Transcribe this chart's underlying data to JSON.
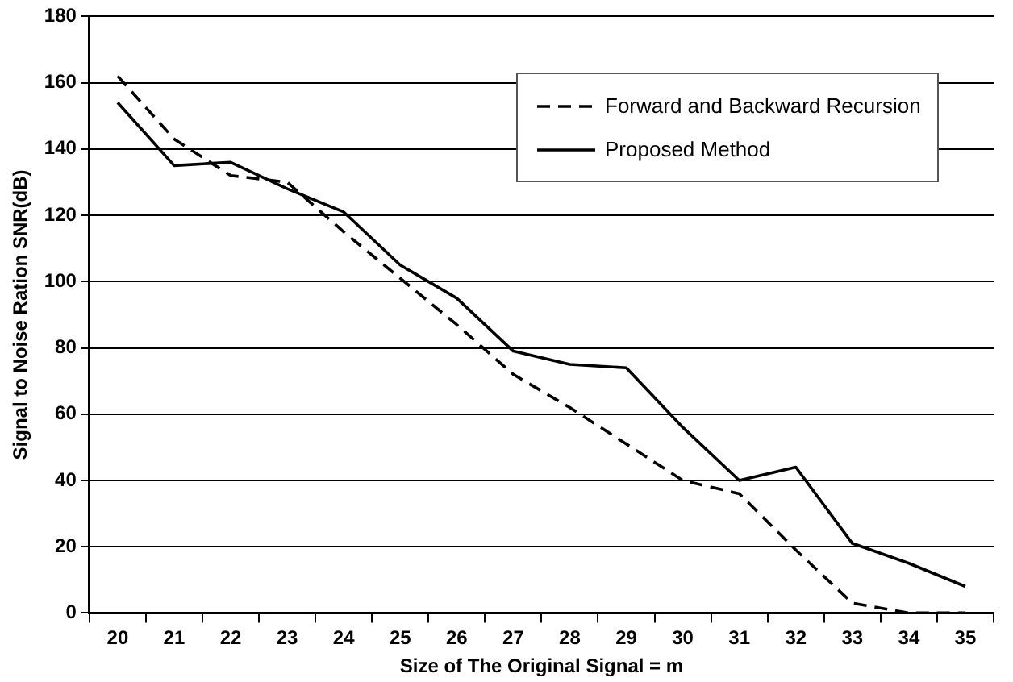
{
  "chart_data": {
    "type": "line",
    "xlabel": "Size of The Original Signal = m",
    "ylabel": "Signal to Noise Ration SNR(dB)",
    "categories": [
      "20",
      "21",
      "22",
      "23",
      "24",
      "25",
      "26",
      "27",
      "28",
      "29",
      "30",
      "31",
      "32",
      "33",
      "34",
      "35"
    ],
    "series": [
      {
        "name": "Forward and Backward Recursion",
        "color": "#000000",
        "line_style": "dashed",
        "values": [
          162,
          143,
          132,
          130,
          115,
          101,
          87,
          72,
          62,
          51,
          40,
          36,
          19,
          3,
          0,
          0
        ]
      },
      {
        "name": "Proposed Method",
        "color": "#000000",
        "line_style": "solid",
        "values": [
          154,
          135,
          136,
          128,
          121,
          105,
          95,
          79,
          75,
          74,
          56,
          40,
          44,
          21,
          15,
          8
        ]
      }
    ],
    "ylim": [
      0,
      180
    ],
    "yticks": [
      0,
      20,
      40,
      60,
      80,
      100,
      120,
      140,
      160,
      180
    ],
    "grid": "y",
    "legend": "top right",
    "marker": "none"
  }
}
